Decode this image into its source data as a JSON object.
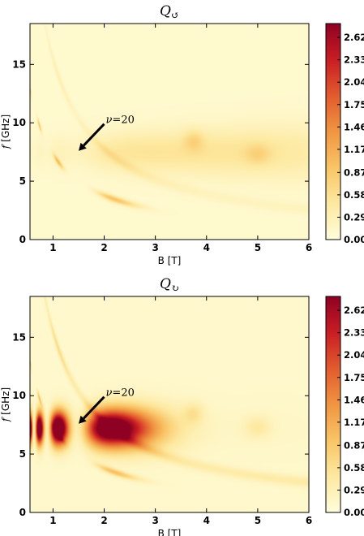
{
  "chart_data": [
    {
      "type": "heatmap",
      "title": "Q↺",
      "title_symbol": "Q",
      "title_subscript": "↺",
      "xlabel": "B [T]",
      "ylabel_italic": "f",
      "ylabel_unit": "[GHz]",
      "xlim": [
        0.55,
        6.0
      ],
      "ylim": [
        0,
        18.5
      ],
      "xticks": [
        1,
        2,
        3,
        4,
        5,
        6
      ],
      "yticks": [
        0,
        5,
        10,
        15
      ],
      "colorbar": {
        "min": 0.0,
        "max": 2.8,
        "ticks": [
          "0.00",
          "0.29",
          "0.58",
          "0.87",
          "1.17",
          "1.46",
          "1.75",
          "2.04",
          "2.33",
          "2.62"
        ],
        "colors": [
          "#fffddb",
          "#fde9a0",
          "#f9c466",
          "#f09542",
          "#e25b2e",
          "#c81d24",
          "#8f0122"
        ]
      },
      "annotation": {
        "text_symbol": "ν",
        "text_value": "=20",
        "arrow_tail": [
          2.0,
          9.9
        ],
        "arrow_head": [
          1.5,
          7.6
        ]
      },
      "features": {
        "background_level": 0.1,
        "main_band_level": 0.6,
        "main_band_freq": 7.5,
        "main_band_peak_B": 4.3,
        "upper_branch_amp": 0.2,
        "lower_branch_amp": 0.85,
        "stripe_amp": 0.3
      }
    },
    {
      "type": "heatmap",
      "title": "Q↻",
      "title_symbol": "Q",
      "title_subscript": "↻",
      "xlabel": "B [T]",
      "ylabel_italic": "f",
      "ylabel_unit": "[GHz]",
      "xlim": [
        0.55,
        6.0
      ],
      "ylim": [
        0,
        18.5
      ],
      "xticks": [
        1,
        2,
        3,
        4,
        5,
        6
      ],
      "yticks": [
        0,
        5,
        10,
        15
      ],
      "colorbar": {
        "min": 0.0,
        "max": 2.8,
        "ticks": [
          "0.00",
          "0.29",
          "0.58",
          "0.87",
          "1.17",
          "1.46",
          "1.75",
          "2.04",
          "2.33",
          "2.62"
        ],
        "colors": [
          "#fffddb",
          "#fde9a0",
          "#f9c466",
          "#f09542",
          "#e25b2e",
          "#c81d24",
          "#8f0122"
        ]
      },
      "annotation": {
        "text_symbol": "ν",
        "text_value": "=20",
        "arrow_tail": [
          2.0,
          9.9
        ],
        "arrow_head": [
          1.5,
          7.6
        ]
      },
      "features": {
        "background_level": 0.12,
        "main_band_level": 2.5,
        "main_band_freq": 7.2,
        "main_band_peak_B": 1.3,
        "upper_branch_amp": 0.45,
        "lower_branch_amp": 0.85,
        "stripe_amp": 0.9
      }
    }
  ]
}
